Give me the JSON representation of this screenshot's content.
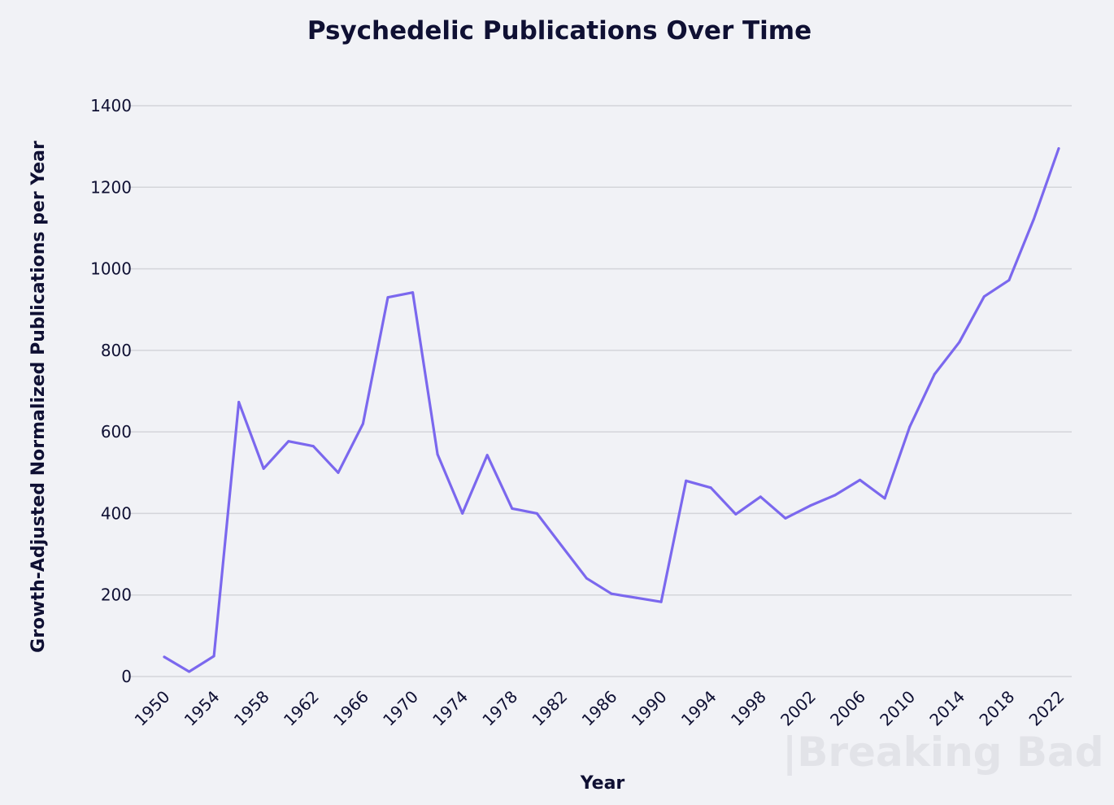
{
  "chart_data": {
    "type": "line",
    "title": "Psychedelic Publications Over Time",
    "xlabel": "Year",
    "ylabel": "Growth-Adjusted Normalized Publications per Year",
    "xlim": [
      1950,
      2022
    ],
    "ylim": [
      0,
      1400
    ],
    "x_ticks": [
      1950,
      1954,
      1958,
      1962,
      1966,
      1970,
      1974,
      1978,
      1982,
      1986,
      1990,
      1994,
      1998,
      2002,
      2006,
      2010,
      2014,
      2018,
      2022
    ],
    "y_ticks": [
      0,
      200,
      400,
      600,
      800,
      1000,
      1200,
      1400
    ],
    "grid": "horizontal",
    "line_color": "#7b68ee",
    "series": [
      {
        "x": [
          1950,
          1952,
          1954,
          1956,
          1958,
          1960,
          1962,
          1964,
          1966,
          1968,
          1970,
          1972,
          1974,
          1976,
          1978,
          1980,
          1982,
          1984,
          1986,
          1988,
          1990,
          1992,
          1994,
          1996,
          1998,
          2000,
          2002,
          2004,
          2006,
          2008,
          2010,
          2012,
          2014,
          2016,
          2018,
          2020,
          2022
        ],
        "y": [
          48,
          12,
          50,
          673,
          510,
          577,
          565,
          500,
          620,
          930,
          942,
          545,
          400,
          543,
          412,
          400,
          320,
          241,
          203,
          193,
          183,
          480,
          463,
          398,
          441,
          388,
          419,
          445,
          482,
          437,
          612,
          741,
          820,
          932,
          972,
          1122,
          1295
        ]
      }
    ]
  },
  "watermark": "|Breaking Bad"
}
